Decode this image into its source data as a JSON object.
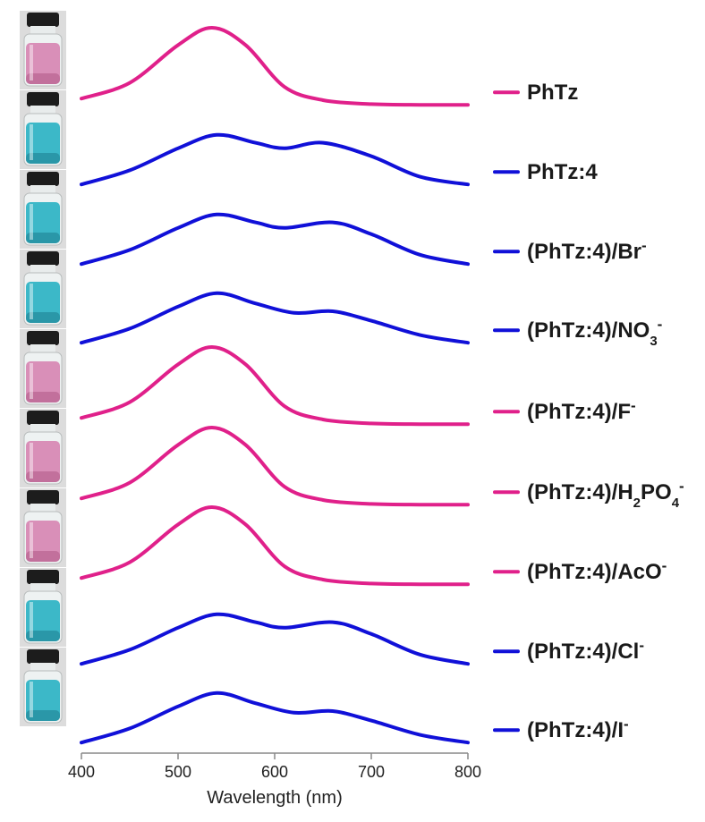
{
  "chart_data": {
    "type": "line",
    "xlabel": "Wavelength (nm)",
    "ylabel": "",
    "xlim": [
      400,
      800
    ],
    "xticks": [
      "400",
      "500",
      "600",
      "700",
      "800"
    ],
    "stacked_offset": true,
    "grid": false,
    "legend_placement": "right of each trace",
    "colors": {
      "pink": "#e0208a",
      "blue": "#1010d8"
    },
    "series": [
      {
        "name": "PhTz",
        "label": {
          "pre": "PhTz",
          "sub": "",
          "post": "",
          "sup": ""
        },
        "color": "#e0208a",
        "shape": "single",
        "x": [
          400,
          450,
          500,
          535,
          570,
          610,
          650,
          700,
          750,
          800
        ],
        "y": [
          0.1,
          0.3,
          0.78,
          1.0,
          0.78,
          0.25,
          0.08,
          0.03,
          0.02,
          0.02
        ]
      },
      {
        "name": "PhTz:4",
        "label": {
          "pre": "PhTz:4",
          "sub": "",
          "post": "",
          "sup": ""
        },
        "color": "#1010d8",
        "shape": "double",
        "x": [
          400,
          450,
          500,
          540,
          580,
          610,
          650,
          700,
          750,
          800
        ],
        "y": [
          0.02,
          0.2,
          0.48,
          0.65,
          0.55,
          0.48,
          0.55,
          0.38,
          0.12,
          0.02
        ]
      },
      {
        "name": "(PhTz:4)/Br-",
        "label": {
          "pre": "(PhTz:4)/Br",
          "sub": "",
          "post": "",
          "sup": "-"
        },
        "color": "#1010d8",
        "shape": "double",
        "x": [
          400,
          450,
          500,
          540,
          580,
          610,
          660,
          700,
          750,
          800
        ],
        "y": [
          0.02,
          0.2,
          0.48,
          0.65,
          0.55,
          0.48,
          0.55,
          0.4,
          0.14,
          0.02
        ]
      },
      {
        "name": "(PhTz:4)/NO3-",
        "label": {
          "pre": "(PhTz:4)/NO",
          "sub": "3",
          "post": "",
          "sup": "-"
        },
        "color": "#1010d8",
        "shape": "double",
        "x": [
          400,
          450,
          500,
          540,
          580,
          620,
          660,
          700,
          750,
          800
        ],
        "y": [
          0.02,
          0.2,
          0.48,
          0.65,
          0.52,
          0.4,
          0.42,
          0.3,
          0.12,
          0.02
        ]
      },
      {
        "name": "(PhTz:4)/F-",
        "label": {
          "pre": "(PhTz:4)/F",
          "sub": "",
          "post": "",
          "sup": "-"
        },
        "color": "#e0208a",
        "shape": "single",
        "x": [
          400,
          450,
          500,
          535,
          570,
          610,
          650,
          700,
          750,
          800
        ],
        "y": [
          0.1,
          0.3,
          0.78,
          1.0,
          0.78,
          0.25,
          0.08,
          0.03,
          0.02,
          0.02
        ]
      },
      {
        "name": "(PhTz:4)/H2PO4-",
        "label": {
          "pre": "(PhTz:4)/H",
          "sub": "2",
          "post": "PO",
          "sub2": "4",
          "sup": "-"
        },
        "color": "#e0208a",
        "shape": "single",
        "x": [
          400,
          450,
          500,
          535,
          570,
          610,
          650,
          700,
          750,
          800
        ],
        "y": [
          0.1,
          0.3,
          0.78,
          1.0,
          0.78,
          0.25,
          0.08,
          0.03,
          0.02,
          0.02
        ]
      },
      {
        "name": "(PhTz:4)/AcO-",
        "label": {
          "pre": "(PhTz:4)/AcO",
          "sub": "",
          "post": "",
          "sup": "-"
        },
        "color": "#e0208a",
        "shape": "single",
        "x": [
          400,
          450,
          500,
          535,
          570,
          610,
          650,
          700,
          750,
          800
        ],
        "y": [
          0.1,
          0.3,
          0.78,
          1.0,
          0.78,
          0.25,
          0.08,
          0.03,
          0.02,
          0.02
        ]
      },
      {
        "name": "(PhTz:4)/Cl-",
        "label": {
          "pre": "(PhTz:4)/Cl",
          "sub": "",
          "post": "",
          "sup": "-"
        },
        "color": "#1010d8",
        "shape": "double",
        "x": [
          400,
          450,
          500,
          540,
          580,
          610,
          660,
          700,
          750,
          800
        ],
        "y": [
          0.02,
          0.2,
          0.48,
          0.65,
          0.55,
          0.48,
          0.55,
          0.4,
          0.14,
          0.02
        ]
      },
      {
        "name": "(PhTz:4)/I-",
        "label": {
          "pre": "(PhTz:4)/I",
          "sub": "",
          "post": "",
          "sup": "-"
        },
        "color": "#1010d8",
        "shape": "double",
        "x": [
          400,
          450,
          500,
          540,
          580,
          620,
          660,
          700,
          750,
          800
        ],
        "y": [
          0.02,
          0.2,
          0.48,
          0.65,
          0.52,
          0.4,
          0.42,
          0.3,
          0.12,
          0.02
        ]
      }
    ],
    "vials": [
      {
        "liquid": "#d98fb8",
        "liquid_dark": "#c2709c"
      },
      {
        "liquid": "#3cb8c8",
        "liquid_dark": "#2a97a8"
      },
      {
        "liquid": "#3cb8c8",
        "liquid_dark": "#2a97a8"
      },
      {
        "liquid": "#3cb8c8",
        "liquid_dark": "#2a97a8"
      },
      {
        "liquid": "#d98fb8",
        "liquid_dark": "#c2709c"
      },
      {
        "liquid": "#d98fb8",
        "liquid_dark": "#c2709c"
      },
      {
        "liquid": "#d98fb8",
        "liquid_dark": "#c2709c"
      },
      {
        "liquid": "#3cb8c8",
        "liquid_dark": "#2a97a8"
      },
      {
        "liquid": "#3cb8c8",
        "liquid_dark": "#2a97a8"
      }
    ]
  }
}
